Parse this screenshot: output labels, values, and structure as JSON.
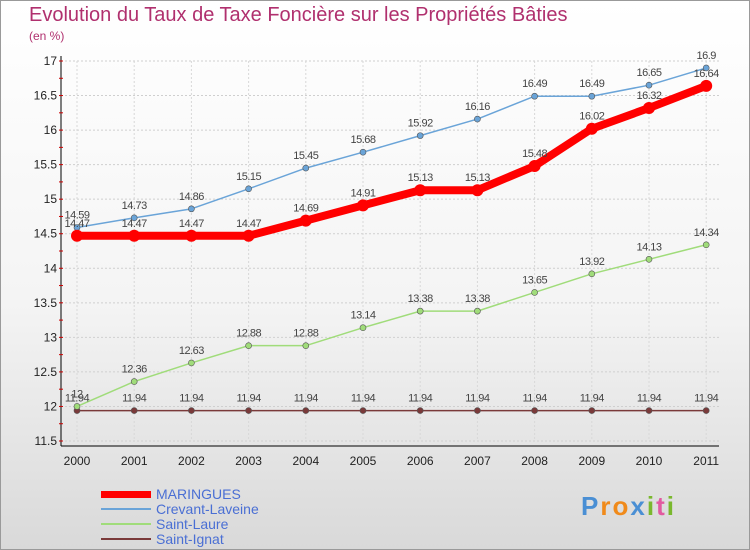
{
  "title": "Evolution du Taux de Taxe Foncière sur les Propriétés Bâties",
  "subtitle": "(en %)",
  "logo": {
    "text": "Proxiti",
    "letters": [
      "P",
      "r",
      "o",
      "x",
      "i",
      "t",
      "i"
    ],
    "colors": [
      "#4a8fd4",
      "#f08a1a",
      "#f08a1a",
      "#4a8fd4",
      "#7ab82e",
      "#e25aa0",
      "#7ab82e"
    ]
  },
  "chart_data": {
    "type": "line",
    "title": "Evolution du Taux de Taxe Foncière sur les Propriétés Bâties",
    "ylabel": "(en %)",
    "xlabel": "",
    "x": [
      "2000",
      "2001",
      "2002",
      "2003",
      "2004",
      "2005",
      "2006",
      "2007",
      "2008",
      "2009",
      "2010",
      "2011"
    ],
    "ylim": [
      11.5,
      17
    ],
    "yticks": [
      "11.5",
      "12",
      "12.5",
      "13",
      "13.5",
      "14",
      "14.5",
      "15",
      "15.5",
      "16",
      "16.5",
      "17"
    ],
    "grid": true,
    "legend": "bottom-left",
    "series": [
      {
        "name": "MARINGUES",
        "color": "#ff0000",
        "values": [
          14.47,
          14.47,
          14.47,
          14.47,
          14.69,
          14.91,
          15.13,
          15.13,
          15.48,
          16.02,
          16.32,
          16.64
        ],
        "labels": [
          "14.47",
          "14.47",
          "14.47",
          "14.47",
          "14.69",
          "14.91",
          "15.13",
          "15.13",
          "15.48",
          "16.02",
          "16.32",
          "16.64"
        ]
      },
      {
        "name": "Crevant-Laveine",
        "color": "#6aa4d8",
        "values": [
          14.59,
          14.73,
          14.86,
          15.15,
          15.45,
          15.68,
          15.92,
          16.16,
          16.49,
          16.49,
          16.65,
          16.9
        ],
        "labels": [
          "14.59",
          "14.73",
          "14.86",
          "15.15",
          "15.45",
          "15.68",
          "15.92",
          "16.16",
          "16.49",
          "16.49",
          "16.65",
          "16.9"
        ]
      },
      {
        "name": "Saint-Laure",
        "color": "#a0dc7a",
        "values": [
          12,
          12.36,
          12.63,
          12.88,
          12.88,
          13.14,
          13.38,
          13.38,
          13.65,
          13.92,
          14.13,
          14.34
        ],
        "labels": [
          "12",
          "12.36",
          "12.63",
          "12.88",
          "12.88",
          "13.14",
          "13.38",
          "13.38",
          "13.65",
          "13.92",
          "14.13",
          "14.34"
        ]
      },
      {
        "name": "Saint-Ignat",
        "color": "#7a3a3a",
        "values": [
          11.94,
          11.94,
          11.94,
          11.94,
          11.94,
          11.94,
          11.94,
          11.94,
          11.94,
          11.94,
          11.94,
          11.94
        ],
        "labels": [
          "11.94",
          "11.94",
          "11.94",
          "11.94",
          "11.94",
          "11.94",
          "11.94",
          "11.94",
          "11.94",
          "11.94",
          "11.94",
          "11.94"
        ]
      }
    ]
  }
}
